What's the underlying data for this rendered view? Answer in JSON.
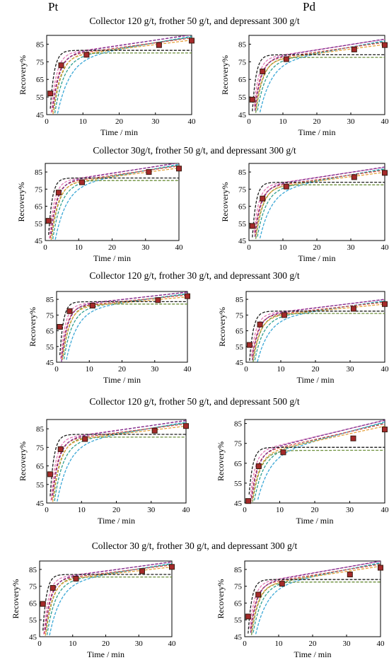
{
  "column_headers": [
    "Pt",
    "Pd"
  ],
  "row_titles": [
    "Collector 120 g/t, frother 50 g/t, and depressant 300 g/t",
    "Collector 30g/t, frother 50 g/t, and depressant 300 g/t",
    "Collector 120 g/t, frother 30 g/t, and depressant 300 g/t",
    "Collector 120 g/t, frother 50 g/t, and depressant 500 g/t",
    "Collector 30 g/t, frother 30 g/t, and depressant 300 g/t"
  ],
  "series_colors": [
    "#1f1f1f",
    "#7b2d8e",
    "#d04a4a",
    "#e6a23c",
    "#e07ab8",
    "#2e9e8f",
    "#3aa7d6",
    "#6b8f3a"
  ],
  "marker_color": "#a52a2a",
  "chart_data": [
    {
      "type": "line",
      "row": 0,
      "col": 0,
      "xlabel": "Time / min",
      "ylabel": "Recovery%",
      "xlim": [
        0,
        40
      ],
      "ylim": [
        45,
        90
      ],
      "xticks": [
        0,
        10,
        20,
        30,
        40
      ],
      "yticks": [
        45,
        55,
        65,
        75,
        85
      ],
      "experimental": {
        "x": [
          1,
          4,
          11,
          31,
          40
        ],
        "y": [
          57,
          73,
          79,
          84.5,
          87
        ]
      }
    },
    {
      "type": "line",
      "row": 0,
      "col": 1,
      "xlabel": "Time / min",
      "ylabel": "Recovery%",
      "xlim": [
        0,
        40
      ],
      "ylim": [
        45,
        90
      ],
      "xticks": [
        0,
        10,
        20,
        30,
        40
      ],
      "yticks": [
        45,
        55,
        65,
        75,
        85
      ],
      "experimental": {
        "x": [
          1,
          4,
          11,
          31,
          40
        ],
        "y": [
          53.5,
          69.5,
          76.5,
          82,
          84.5
        ]
      }
    },
    {
      "type": "line",
      "row": 1,
      "col": 0,
      "xlabel": "Time / min",
      "ylabel": "Recovery%",
      "xlim": [
        0,
        40
      ],
      "ylim": [
        45,
        90
      ],
      "xticks": [
        0,
        10,
        20,
        30,
        40
      ],
      "yticks": [
        45,
        55,
        65,
        75,
        85
      ],
      "experimental": {
        "x": [
          1,
          4,
          11,
          31,
          40
        ],
        "y": [
          56.5,
          73,
          79,
          85,
          87
        ]
      }
    },
    {
      "type": "line",
      "row": 1,
      "col": 1,
      "xlabel": "Time / min",
      "ylabel": "Recovery%",
      "xlim": [
        0,
        40
      ],
      "ylim": [
        45,
        90
      ],
      "xticks": [
        0,
        10,
        20,
        30,
        40
      ],
      "yticks": [
        45,
        55,
        65,
        75,
        85
      ],
      "experimental": {
        "x": [
          1,
          4,
          11,
          31,
          40
        ],
        "y": [
          53.5,
          69.5,
          76.5,
          82,
          84.5
        ]
      }
    },
    {
      "type": "line",
      "row": 2,
      "col": 0,
      "xlabel": "Time / min",
      "ylabel": "Recovery%",
      "xlim": [
        0,
        40
      ],
      "ylim": [
        45,
        90
      ],
      "xticks": [
        0,
        10,
        20,
        30,
        40
      ],
      "yticks": [
        45,
        55,
        65,
        75,
        85
      ],
      "experimental": {
        "x": [
          1,
          4,
          11,
          31,
          40
        ],
        "y": [
          67.5,
          77.5,
          81,
          84.5,
          87
        ]
      }
    },
    {
      "type": "line",
      "row": 2,
      "col": 1,
      "xlabel": "Time / min",
      "ylabel": "Recovery%",
      "xlim": [
        0,
        40
      ],
      "ylim": [
        45,
        90
      ],
      "xticks": [
        0,
        10,
        20,
        30,
        40
      ],
      "yticks": [
        45,
        55,
        65,
        75,
        85
      ],
      "experimental": {
        "x": [
          1,
          4,
          11,
          31,
          40
        ],
        "y": [
          56,
          69,
          75,
          79,
          82
        ]
      }
    },
    {
      "type": "line",
      "row": 3,
      "col": 0,
      "xlabel": "Time / min",
      "ylabel": "Recovery%",
      "xlim": [
        0,
        40
      ],
      "ylim": [
        45,
        90
      ],
      "xticks": [
        0,
        10,
        20,
        30,
        40
      ],
      "yticks": [
        45,
        55,
        65,
        75,
        85
      ],
      "experimental": {
        "x": [
          1,
          4,
          11,
          31,
          40
        ],
        "y": [
          60.5,
          74,
          79.5,
          84,
          86.5
        ]
      }
    },
    {
      "type": "line",
      "row": 3,
      "col": 1,
      "xlabel": "Time / min",
      "ylabel": "Recovery%",
      "xlim": [
        0,
        40
      ],
      "ylim": [
        45,
        87
      ],
      "xticks": [
        0,
        10,
        20,
        30,
        40
      ],
      "yticks": [
        45,
        55,
        65,
        75,
        85
      ],
      "experimental": {
        "x": [
          1,
          4,
          11,
          31,
          40
        ],
        "y": [
          46,
          63.5,
          70.5,
          77.5,
          82
        ]
      }
    },
    {
      "type": "line",
      "row": 4,
      "col": 0,
      "xlabel": "Time / min",
      "ylabel": "Recovery%",
      "xlim": [
        0,
        40
      ],
      "ylim": [
        45,
        90
      ],
      "xticks": [
        0,
        10,
        20,
        30,
        40
      ],
      "yticks": [
        45,
        55,
        65,
        75,
        85
      ],
      "experimental": {
        "x": [
          1,
          4,
          11,
          31,
          40
        ],
        "y": [
          64.5,
          74,
          79.5,
          84,
          86.5
        ]
      }
    },
    {
      "type": "line",
      "row": 4,
      "col": 1,
      "xlabel": "Time / min",
      "ylabel": "Recovery%",
      "xlim": [
        0,
        40
      ],
      "ylim": [
        45,
        90
      ],
      "xticks": [
        0,
        10,
        20,
        30,
        40
      ],
      "yticks": [
        45,
        55,
        65,
        75,
        85
      ],
      "experimental": {
        "x": [
          1,
          4,
          11,
          31,
          40
        ],
        "y": [
          57,
          70,
          76.5,
          82,
          86
        ]
      }
    }
  ]
}
